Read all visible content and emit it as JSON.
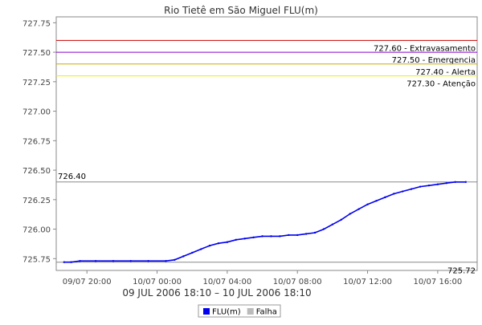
{
  "chart_data": {
    "type": "line",
    "title": "Rio Tietê em São Miguel FLU(m)",
    "xlabel": "09 JUL 2006 18:10 – 10 JUL 2006 18:10",
    "ylabel": "",
    "x_unit": "hours",
    "x_range": [
      18.25,
      42.25
    ],
    "ylim": [
      725.65,
      727.8
    ],
    "grid": false,
    "legend_position": "bottom-center",
    "y_ticks": [
      {
        "value": 725.75,
        "label": "725.75"
      },
      {
        "value": 726.0,
        "label": "726.00"
      },
      {
        "value": 726.25,
        "label": "726.25"
      },
      {
        "value": 726.5,
        "label": "726.50"
      },
      {
        "value": 726.75,
        "label": "726.75"
      },
      {
        "value": 727.0,
        "label": "727.00"
      },
      {
        "value": 727.25,
        "label": "727.25"
      },
      {
        "value": 727.5,
        "label": "727.50"
      },
      {
        "value": 727.75,
        "label": "727.75"
      }
    ],
    "x_ticks": [
      {
        "value": 20,
        "label": "09/07 20:00"
      },
      {
        "value": 24,
        "label": "10/07 00:00"
      },
      {
        "value": 28,
        "label": "10/07 04:00"
      },
      {
        "value": 32,
        "label": "10/07 08:00"
      },
      {
        "value": 36,
        "label": "10/07 12:00"
      },
      {
        "value": 40,
        "label": "10/07 16:00"
      }
    ],
    "thresholds": [
      {
        "value": 727.6,
        "label": "727.60 - Extravasamento",
        "color": "#cc0000"
      },
      {
        "value": 727.5,
        "label": "727.50 - Emergencia",
        "color": "#8800cc"
      },
      {
        "value": 727.4,
        "label": "727.40 - Alerta",
        "color": "#ccaa00"
      },
      {
        "value": 727.3,
        "label": "727.30 - Atenção",
        "color": "#eeee00"
      }
    ],
    "reference_lines": [
      {
        "value": 726.4,
        "label": "726.40",
        "label_side": "left",
        "color": "#888888"
      },
      {
        "value": 725.72,
        "label": "725.72",
        "label_side": "right",
        "color": "#888888"
      }
    ],
    "series": [
      {
        "name": "FLU(m)",
        "color": "#0000ee",
        "x": [
          18.7,
          19.1,
          19.6,
          20.5,
          21.5,
          22.5,
          23.5,
          24.5,
          25.0,
          25.5,
          26.0,
          26.5,
          27.0,
          27.5,
          28.0,
          28.5,
          29.0,
          29.5,
          30.0,
          30.5,
          31.0,
          31.5,
          32.0,
          32.5,
          33.0,
          33.5,
          34.0,
          34.5,
          35.0,
          35.5,
          36.0,
          36.5,
          37.0,
          37.5,
          38.0,
          38.5,
          39.0,
          39.5,
          40.0,
          40.5,
          41.0,
          41.6
        ],
        "y": [
          725.72,
          725.72,
          725.73,
          725.73,
          725.73,
          725.73,
          725.73,
          725.73,
          725.74,
          725.77,
          725.8,
          725.83,
          725.86,
          725.88,
          725.89,
          725.91,
          725.92,
          725.93,
          725.94,
          725.94,
          725.94,
          725.95,
          725.95,
          725.96,
          725.97,
          726.0,
          726.04,
          726.08,
          726.13,
          726.17,
          726.21,
          726.24,
          726.27,
          726.3,
          726.32,
          726.34,
          726.36,
          726.37,
          726.38,
          726.39,
          726.4,
          726.4
        ]
      },
      {
        "name": "Falha",
        "color": "#bbbbbb",
        "x": [],
        "y": []
      }
    ]
  }
}
